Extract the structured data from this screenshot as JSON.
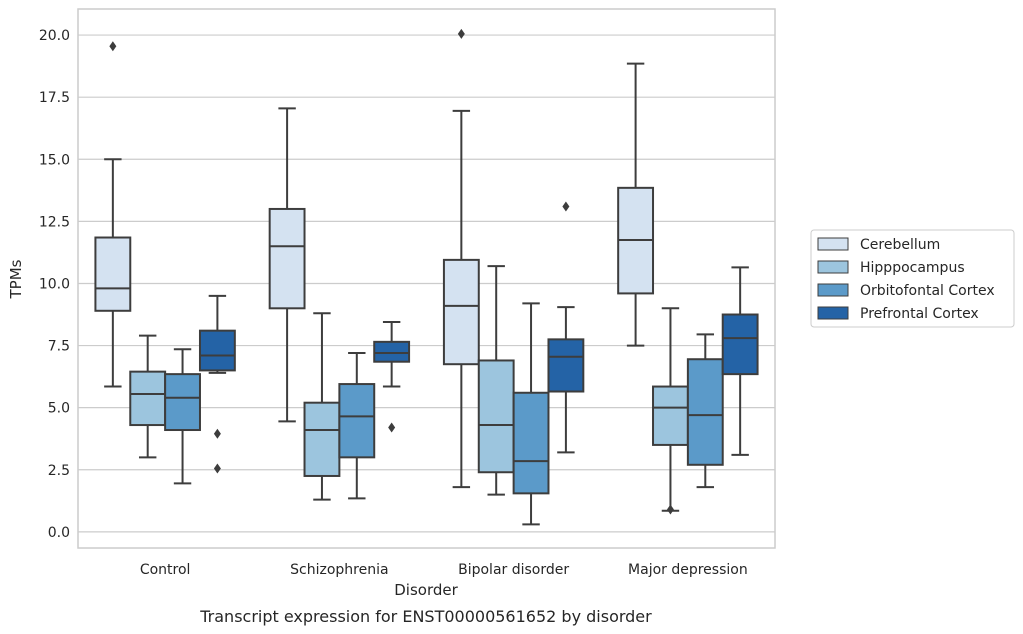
{
  "chart_data": {
    "type": "box",
    "caption": "Transcript expression for ENST00000561652 by disorder",
    "xlabel": "Disorder",
    "ylabel": "TPMs",
    "ylim": [
      -0.65,
      21.05
    ],
    "yticks": [
      "0.0",
      "2.5",
      "5.0",
      "7.5",
      "10.0",
      "12.5",
      "15.0",
      "17.5",
      "20.0"
    ],
    "ytick_values": [
      0,
      2.5,
      5,
      7.5,
      10,
      12.5,
      15,
      17.5,
      20
    ],
    "grid": "horizontal",
    "legend_position": "right",
    "categories": [
      "Control",
      "Schizophrenia",
      "Bipolar disorder",
      "Major depression"
    ],
    "series": [
      {
        "name": "Cerebellum",
        "color": "#d4e2f1",
        "boxes": [
          {
            "whislo": 5.85,
            "q1": 8.9,
            "med": 9.8,
            "q3": 11.85,
            "whishi": 15.0,
            "fliers": [
              19.55
            ]
          },
          {
            "whislo": 4.45,
            "q1": 9.0,
            "med": 11.5,
            "q3": 13.0,
            "whishi": 17.05,
            "fliers": []
          },
          {
            "whislo": 1.8,
            "q1": 6.75,
            "med": 9.1,
            "q3": 10.95,
            "whishi": 16.95,
            "fliers": [
              20.05
            ]
          },
          {
            "whislo": 7.5,
            "q1": 9.6,
            "med": 11.75,
            "q3": 13.85,
            "whishi": 18.85,
            "fliers": []
          }
        ]
      },
      {
        "name": "Hipppocampus",
        "color": "#9cc5de",
        "boxes": [
          {
            "whislo": 3.0,
            "q1": 4.3,
            "med": 5.55,
            "q3": 6.45,
            "whishi": 7.9,
            "fliers": []
          },
          {
            "whislo": 1.3,
            "q1": 2.25,
            "med": 4.1,
            "q3": 5.2,
            "whishi": 8.8,
            "fliers": []
          },
          {
            "whislo": 1.5,
            "q1": 2.4,
            "med": 4.3,
            "q3": 6.9,
            "whishi": 10.7,
            "fliers": []
          },
          {
            "whislo": 0.85,
            "q1": 3.5,
            "med": 5.0,
            "q3": 5.85,
            "whishi": 9.0,
            "fliers": [
              0.9
            ]
          }
        ]
      },
      {
        "name": "Orbitofontal Cortex",
        "color": "#5b9ac9",
        "boxes": [
          {
            "whislo": 1.95,
            "q1": 4.1,
            "med": 5.4,
            "q3": 6.35,
            "whishi": 7.35,
            "fliers": []
          },
          {
            "whislo": 1.35,
            "q1": 3.0,
            "med": 4.65,
            "q3": 5.95,
            "whishi": 7.2,
            "fliers": []
          },
          {
            "whislo": 0.3,
            "q1": 1.55,
            "med": 2.85,
            "q3": 5.6,
            "whishi": 9.2,
            "fliers": []
          },
          {
            "whislo": 1.8,
            "q1": 2.7,
            "med": 4.7,
            "q3": 6.95,
            "whishi": 7.95,
            "fliers": []
          }
        ]
      },
      {
        "name": "Prefrontal Cortex",
        "color": "#2463a6",
        "boxes": [
          {
            "whislo": 6.4,
            "q1": 6.5,
            "med": 7.1,
            "q3": 8.1,
            "whishi": 9.5,
            "fliers": [
              3.95,
              2.55
            ]
          },
          {
            "whislo": 5.85,
            "q1": 6.85,
            "med": 7.2,
            "q3": 7.65,
            "whishi": 8.45,
            "fliers": [
              4.2
            ]
          },
          {
            "whislo": 3.2,
            "q1": 5.65,
            "med": 7.05,
            "q3": 7.75,
            "whishi": 9.05,
            "fliers": [
              13.1
            ]
          },
          {
            "whislo": 3.1,
            "q1": 6.35,
            "med": 7.8,
            "q3": 8.75,
            "whishi": 10.65,
            "fliers": []
          }
        ]
      }
    ]
  }
}
